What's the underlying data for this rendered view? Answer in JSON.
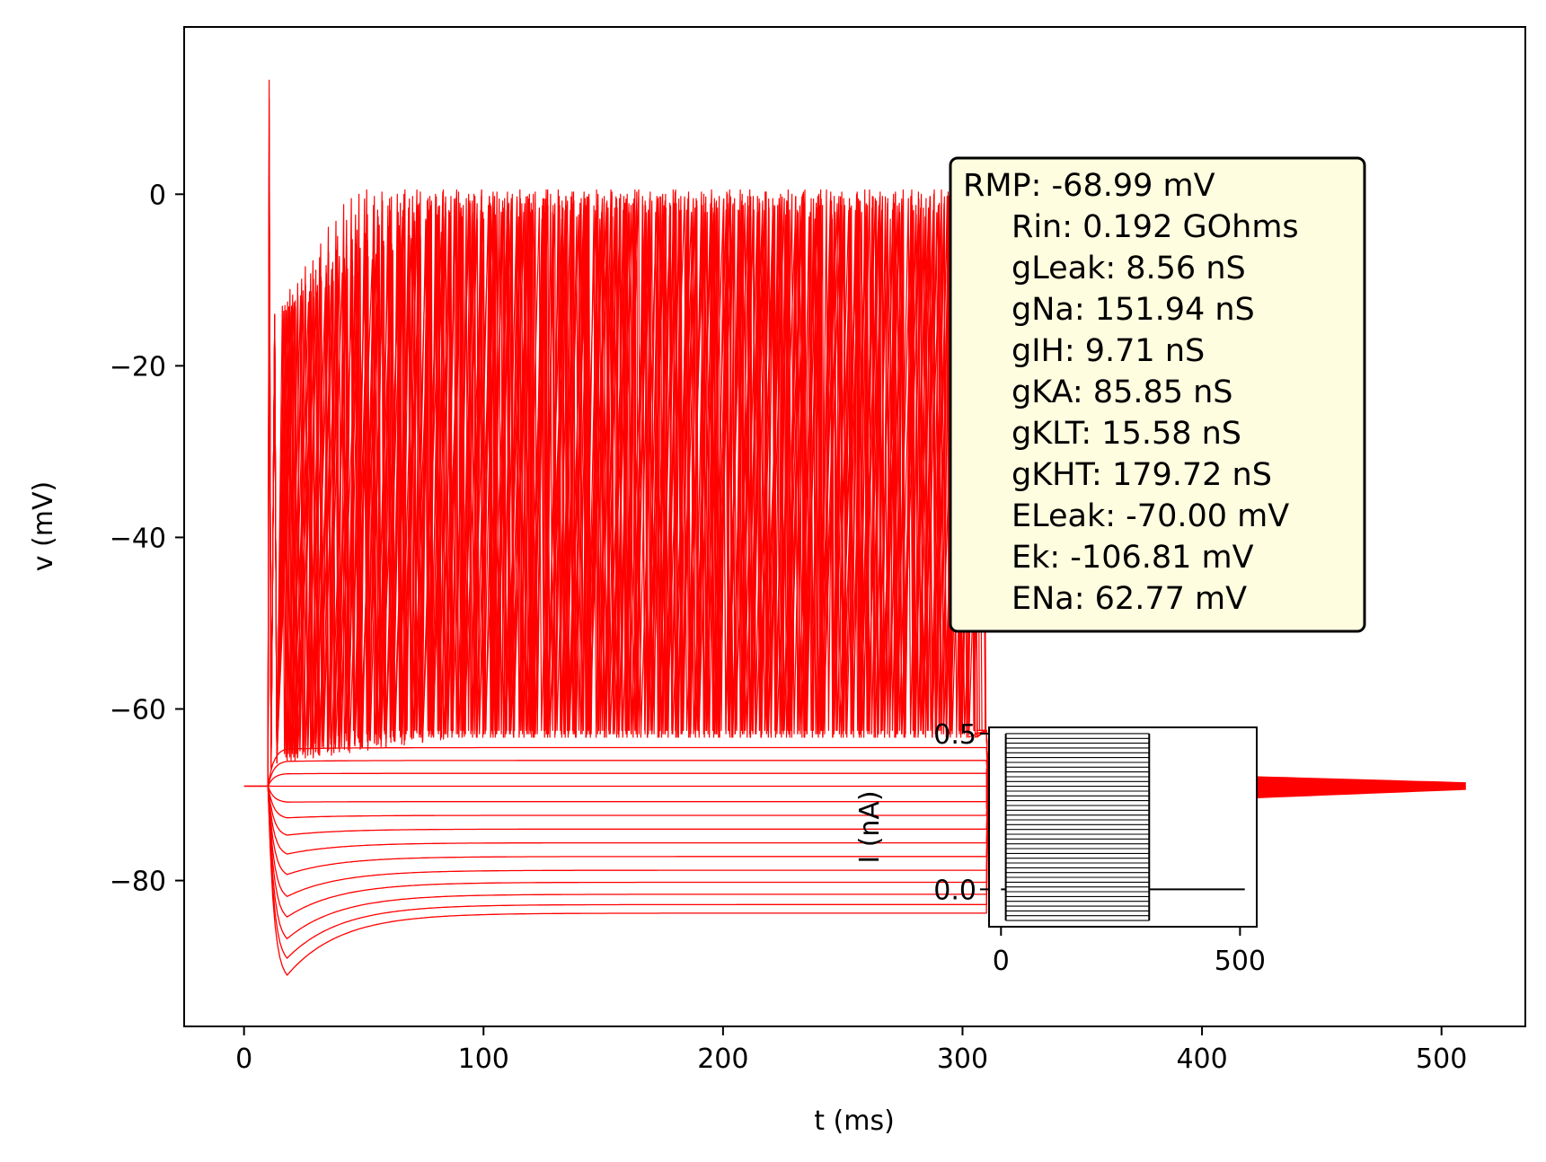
{
  "chart_data": [
    {
      "type": "line",
      "xlabel": "t (ms)",
      "ylabel": "v (mV)",
      "xlim": [
        -25,
        535
      ],
      "ylim": [
        -97,
        19.5
      ],
      "xticks": [
        0,
        100,
        200,
        300,
        400,
        500
      ],
      "yticks": [
        0,
        -20,
        -40,
        -60,
        -80
      ],
      "line_color": "#ff0000",
      "grid": false,
      "stimulus": {
        "onset_ms": 10,
        "offset_ms": 310,
        "trace_end_ms": 510
      },
      "resting_potential_mv": -68.99,
      "peak_first_spike_mv": 13.3,
      "subthreshold_sweeps_steady_mv": [
        -64.5,
        -66.0,
        -67.5,
        -69.0,
        -70.8,
        -72.4,
        -74.0,
        -75.6,
        -77.2,
        -78.8,
        -80.2,
        -81.6,
        -82.8,
        -83.8
      ],
      "spike_trough_mv": -62.5,
      "spike_peak_range_mv": [
        -2.5,
        1.0
      ],
      "info_box": {
        "lines": [
          "RMP: -68.99 mV",
          "Rin: 0.192 GOhms",
          "gLeak: 8.56 nS",
          "gNa: 151.94 nS",
          "gIH: 9.71 nS",
          "gKA: 85.85 nS",
          "gKLT: 15.58 nS",
          "gKHT: 179.72 nS",
          "ELeak: -70.00 mV",
          "Ek: -106.81 mV",
          "ENa: 62.77 mV"
        ],
        "background": "#fffde0"
      }
    },
    {
      "type": "line",
      "xlabel": "",
      "ylabel": "I (nA)",
      "xlim": [
        -25,
        535
      ],
      "ylim": [
        -0.12,
        0.52
      ],
      "xticks": [
        0,
        500
      ],
      "yticks": [
        0.5,
        0.0
      ],
      "line_color": "#000000",
      "step_onset_ms": 10,
      "step_offset_ms": 310,
      "trace_end_ms": 510,
      "current_range_nA": [
        -0.1,
        0.5
      ],
      "n_sweeps": 40
    }
  ]
}
